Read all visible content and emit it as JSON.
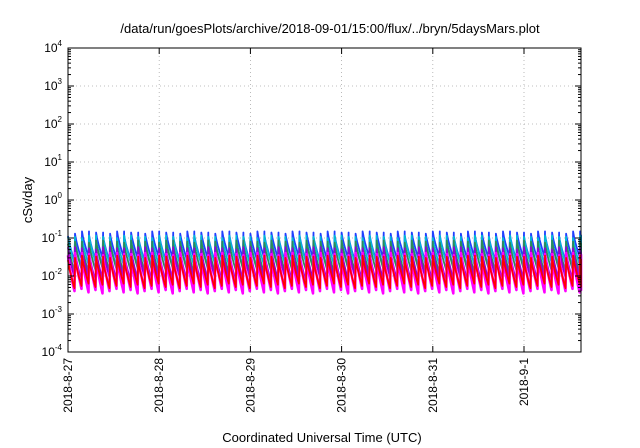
{
  "chart_data": {
    "type": "line",
    "title": "/data/run/goesPlots/archive/2018-09-01/15:00/flux/../bryn/5daysMars.plot",
    "xlabel": "Coordinated Universal Time (UTC)",
    "ylabel": "cSv/day",
    "yscale": "log",
    "ylim": [
      "1e-4",
      "1e4"
    ],
    "xlim": [
      "2018-08-27T00:00",
      "2018-09-01T15:00"
    ],
    "grid": true,
    "y_ticks": [
      {
        "base": "10",
        "exp": "4"
      },
      {
        "base": "10",
        "exp": "3"
      },
      {
        "base": "10",
        "exp": "2"
      },
      {
        "base": "10",
        "exp": "1"
      },
      {
        "base": "10",
        "exp": "0"
      },
      {
        "base": "10",
        "exp": "-1"
      },
      {
        "base": "10",
        "exp": "-2"
      },
      {
        "base": "10",
        "exp": "-3"
      },
      {
        "base": "10",
        "exp": "-4"
      }
    ],
    "x_ticks": [
      "2018-8-27",
      "2018-8-28",
      "2018-8-29",
      "2018-8-30",
      "2018-8-31",
      "2018-9-1"
    ],
    "cycles_per_day": 13,
    "series": [
      {
        "color": "#1f3fff",
        "peak": 0.13,
        "trough": 0.028
      },
      {
        "color": "#00bcd4",
        "peak": 0.1,
        "trough": 0.02
      },
      {
        "color": "#2e8b57",
        "peak": 0.075,
        "trough": 0.014
      },
      {
        "color": "#9400d3",
        "peak": 0.05,
        "trough": 0.008
      },
      {
        "color": "#ff00ff",
        "peak": 0.035,
        "trough": 0.004
      },
      {
        "color": "#ff0000",
        "peak": 0.03,
        "trough": 0.0055
      }
    ]
  }
}
